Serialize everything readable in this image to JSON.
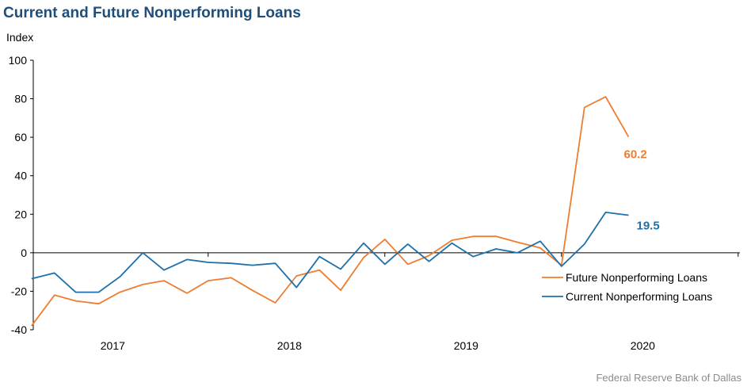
{
  "page": {
    "title": "Current and Future Nonperforming Loans",
    "source": "Federal Reserve Bank of Dallas"
  },
  "chart_data": {
    "type": "line",
    "ylabel": "Index",
    "ylim": [
      -40,
      100
    ],
    "yticks": [
      -40,
      -20,
      0,
      20,
      40,
      60,
      80,
      100
    ],
    "xlim": [
      2016.55,
      2020.55
    ],
    "x_tick_labels": [
      {
        "label": "2017",
        "x": 2017.0
      },
      {
        "label": "2018",
        "x": 2018.0
      },
      {
        "label": "2019",
        "x": 2019.0
      },
      {
        "label": "2020",
        "x": 2020.0
      }
    ],
    "legend_position": "bottom-right",
    "colors": {
      "future": "#ed7d31",
      "current": "#1f6fa8"
    },
    "series": [
      {
        "key": "future",
        "name": "Future Nonperforming Loans",
        "color": "#ed7d31",
        "end_label": "60.2",
        "points": [
          [
            2016.54,
            -38
          ],
          [
            2016.67,
            -22
          ],
          [
            2016.79,
            -25
          ],
          [
            2016.92,
            -26.5
          ],
          [
            2017.04,
            -20.5
          ],
          [
            2017.17,
            -16.5
          ],
          [
            2017.29,
            -14.5
          ],
          [
            2017.42,
            -21
          ],
          [
            2017.54,
            -14.5
          ],
          [
            2017.67,
            -13
          ],
          [
            2017.79,
            -19.5
          ],
          [
            2017.92,
            -26
          ],
          [
            2018.04,
            -12
          ],
          [
            2018.17,
            -9
          ],
          [
            2018.29,
            -19.5
          ],
          [
            2018.42,
            -2.5
          ],
          [
            2018.54,
            7
          ],
          [
            2018.67,
            -6
          ],
          [
            2018.79,
            -1.5
          ],
          [
            2018.92,
            6.5
          ],
          [
            2019.04,
            8.5
          ],
          [
            2019.17,
            8.5
          ],
          [
            2019.29,
            5.5
          ],
          [
            2019.42,
            2.5
          ],
          [
            2019.54,
            -6.5
          ],
          [
            2019.67,
            75.5
          ],
          [
            2019.79,
            81
          ],
          [
            2019.92,
            60.2
          ]
        ]
      },
      {
        "key": "current",
        "name": "Current Nonperforming Loans",
        "color": "#1f6fa8",
        "end_label": "19.5",
        "points": [
          [
            2016.54,
            -13.5
          ],
          [
            2016.67,
            -10.5
          ],
          [
            2016.79,
            -20.5
          ],
          [
            2016.92,
            -20.5
          ],
          [
            2017.04,
            -12.5
          ],
          [
            2017.17,
            0
          ],
          [
            2017.29,
            -9
          ],
          [
            2017.42,
            -3.5
          ],
          [
            2017.54,
            -5
          ],
          [
            2017.67,
            -5.5
          ],
          [
            2017.79,
            -6.5
          ],
          [
            2017.92,
            -5.5
          ],
          [
            2018.04,
            -18
          ],
          [
            2018.17,
            -2
          ],
          [
            2018.29,
            -8.5
          ],
          [
            2018.42,
            5
          ],
          [
            2018.54,
            -6
          ],
          [
            2018.67,
            4.5
          ],
          [
            2018.79,
            -4.5
          ],
          [
            2018.92,
            5
          ],
          [
            2019.04,
            -2
          ],
          [
            2019.17,
            2
          ],
          [
            2019.29,
            0
          ],
          [
            2019.42,
            6
          ],
          [
            2019.54,
            -7
          ],
          [
            2019.67,
            4.5
          ],
          [
            2019.79,
            21
          ],
          [
            2019.92,
            19.5
          ]
        ]
      }
    ]
  }
}
